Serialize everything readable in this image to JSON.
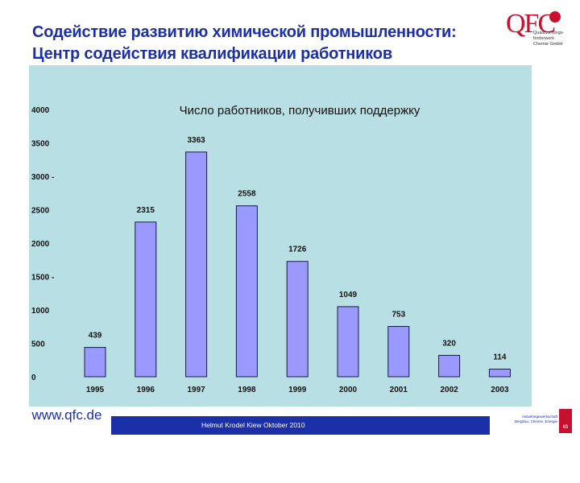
{
  "slide": {
    "title_line1": "Содействие развитию химической промышленности:",
    "title_line2": "Центр содействия квалификации работников",
    "url": "www.qfc.de",
    "footer": "Helmut Krodel   Kiew   Oktober 2010"
  },
  "logo": {
    "mark": "QFC",
    "subtext": [
      "Qualifizierungs-",
      "förderwerk",
      "Chemie GmbH"
    ]
  },
  "union_logo": {
    "text": [
      "Industriegewerkschaft",
      "Bergbau, Chemie, Energie"
    ],
    "mark": "IG BCE"
  },
  "colors": {
    "title": "#1b2fa8",
    "plot_background": "#b8dfe4",
    "bar_fill": "#9999ff",
    "bar_stroke": "#1a1a40",
    "footer_bar": "#1b2fa8",
    "logo_accent": "#c8102e"
  },
  "chart_data": {
    "type": "bar",
    "title": "Число работников, получивших поддержку",
    "categories": [
      "1995",
      "1996",
      "1997",
      "1998",
      "1999",
      "2000",
      "2001",
      "2002",
      "2003"
    ],
    "values": [
      439,
      2315,
      3363,
      2558,
      1726,
      1049,
      753,
      320,
      114
    ],
    "data_labels": [
      "439",
      "2315",
      "3363",
      "2558",
      "1726",
      "1049",
      "753",
      "320",
      "114"
    ],
    "y_ticks": [
      0,
      500,
      1000,
      1500,
      2000,
      2500,
      3000,
      3500,
      4000
    ],
    "y_tick_labels": [
      "0",
      "500",
      "1000",
      "1500 -",
      "2000",
      "2500",
      "3000 -",
      "3500",
      "4000"
    ],
    "ylim": [
      0,
      4000
    ],
    "xlabel": "",
    "ylabel": "",
    "grid": false,
    "legend": "none"
  }
}
